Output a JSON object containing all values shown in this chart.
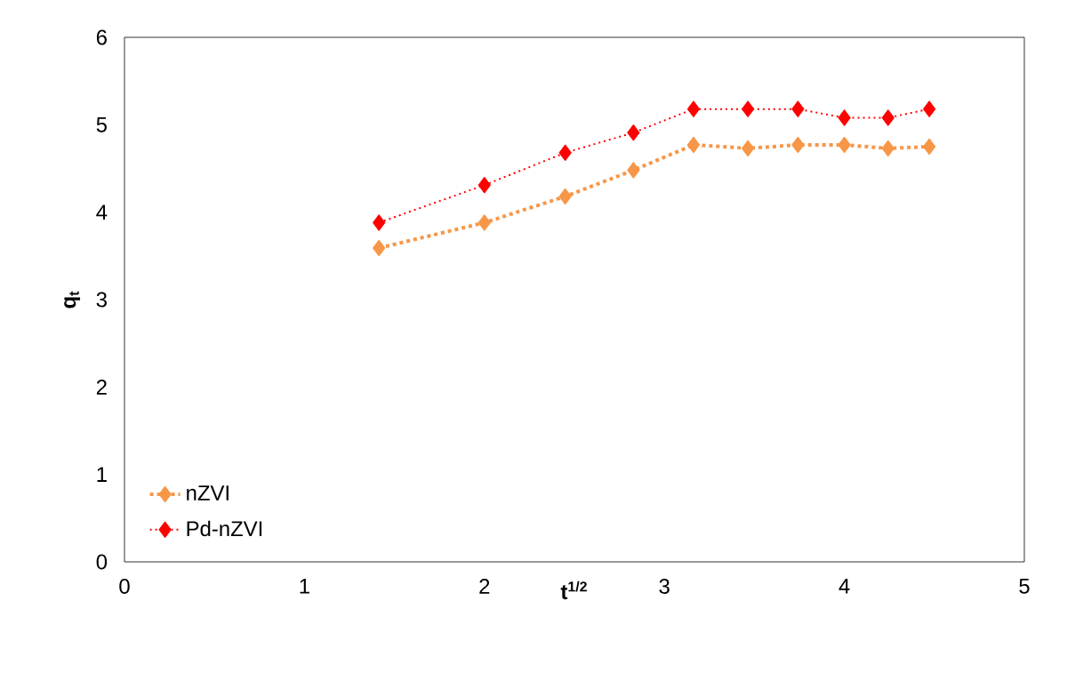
{
  "chart_data": {
    "type": "line",
    "xlabel": "t$^{1/2}$",
    "ylabel": "q$_{t}$",
    "xlim": [
      0,
      5
    ],
    "xticks": [
      0,
      1,
      2,
      3,
      4,
      5
    ],
    "ylim": [
      0,
      6
    ],
    "yticks": [
      0,
      1,
      2,
      3,
      4,
      5,
      6
    ],
    "grid": false,
    "legend": "bottom left",
    "marker": "diamond",
    "line_style": "dotted",
    "x": [
      1.414,
      2,
      2.449,
      2.828,
      3.162,
      3.464,
      3.742,
      4,
      4.243,
      4.472
    ],
    "series": [
      {
        "name": "nZVI",
        "color": "#f79646",
        "values": [
          3.59,
          3.88,
          4.18,
          4.48,
          4.77,
          4.73,
          4.77,
          4.77,
          4.73,
          4.75
        ]
      },
      {
        "name": "Pd-nZVI",
        "color": "#ff0000",
        "values": [
          3.88,
          4.31,
          4.68,
          4.91,
          5.18,
          5.18,
          5.18,
          5.08,
          5.08,
          5.18
        ]
      }
    ]
  }
}
